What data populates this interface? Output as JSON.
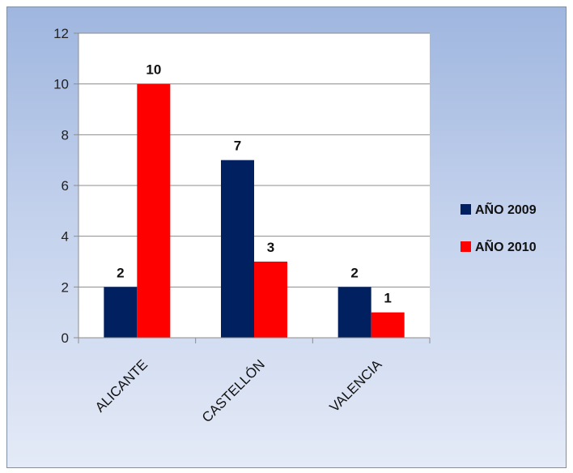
{
  "chart_data": {
    "type": "bar",
    "title": "",
    "xlabel": "",
    "ylabel": "",
    "categories": [
      "ALICANTE",
      "CASTELLÓN",
      "VALENCIA"
    ],
    "series": [
      {
        "name": "AÑO 2009",
        "values": [
          2,
          7,
          2
        ],
        "color": "#002060"
      },
      {
        "name": "AÑO 2010",
        "values": [
          10,
          3,
          1
        ],
        "color": "#ff0000"
      }
    ],
    "ylim": [
      0,
      12
    ],
    "yticks": [
      0,
      2,
      4,
      6,
      8,
      10,
      12
    ],
    "grid": true,
    "legend_position": "right",
    "data_labels": true
  }
}
